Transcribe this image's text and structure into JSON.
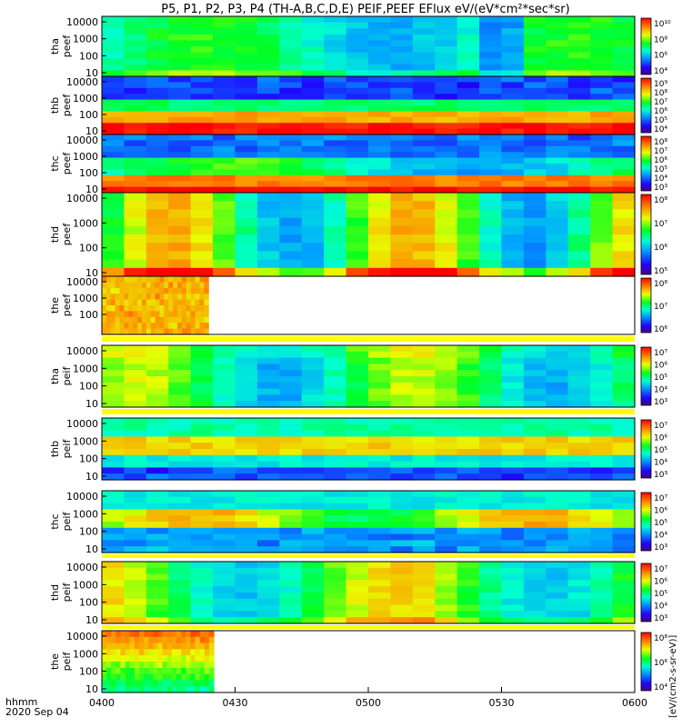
{
  "chart_data": {
    "type": "heatmap",
    "title": "P5, P1, P2, P3, P4 (TH-A,B,C,D,E) PEIF,PEEF EFlux eV/(eV*cm²*sec*sr)",
    "time_axis": {
      "tick_labels": [
        "0400",
        "0430",
        "0500",
        "0530",
        "0600"
      ],
      "label_line1": "hhmm",
      "label_line2": "2020 Sep 04"
    },
    "colorbar_units_label": "[eV/(cm2-s-sr-eV)]",
    "y_ticks_full": [
      "10000",
      "1000",
      "100",
      "10"
    ],
    "y_ticks_tha_peef": [
      "10000",
      "1000",
      "100",
      "10"
    ],
    "y_ticks_the_peef": [
      "10000",
      "1000",
      "100"
    ],
    "panels": [
      {
        "id": "tha-peef",
        "probe": "tha",
        "species": "peef",
        "label_line1": "tha",
        "label_line2": "peef",
        "colorbar_ticks": [
          "10¹⁰",
          "10⁸",
          "10⁶",
          "10⁴"
        ],
        "data_coverage_end": "0600"
      },
      {
        "id": "thb-peef",
        "probe": "thb",
        "species": "peef",
        "label_line1": "thb",
        "label_line2": "peef",
        "colorbar_ticks": [
          "10⁹",
          "10⁸",
          "10⁷",
          "10⁶",
          "10⁵",
          "10⁴"
        ],
        "data_coverage_end": "0600"
      },
      {
        "id": "thc-peef",
        "probe": "thc",
        "species": "peef",
        "label_line1": "thc",
        "label_line2": "peef",
        "colorbar_ticks": [
          "10⁸",
          "10⁷",
          "10⁶",
          "10⁵",
          "10⁴",
          "10³"
        ],
        "data_coverage_end": "0600"
      },
      {
        "id": "thd-peef",
        "probe": "thd",
        "species": "peef",
        "label_line1": "thd",
        "label_line2": "peef",
        "colorbar_ticks": [
          "10⁸",
          "10⁷",
          "10⁶",
          "10⁵"
        ],
        "data_coverage_end": "0600"
      },
      {
        "id": "the-peef",
        "probe": "the",
        "species": "peef",
        "label_line1": "the",
        "label_line2": "peef",
        "colorbar_ticks": [
          "10⁸",
          "10⁷",
          "10⁶"
        ],
        "data_coverage_end": "0428"
      },
      {
        "id": "tha-peif",
        "probe": "tha",
        "species": "peif",
        "label_line1": "tha",
        "label_line2": "peif",
        "colorbar_ticks": [
          "10⁷",
          "10⁶",
          "10⁵",
          "10⁴",
          "10³"
        ],
        "data_coverage_end": "0600"
      },
      {
        "id": "thb-peif",
        "probe": "thb",
        "species": "peif",
        "label_line1": "thb",
        "label_line2": "peif",
        "colorbar_ticks": [
          "10⁷",
          "10⁶",
          "10⁵",
          "10⁴",
          "10³"
        ],
        "data_coverage_end": "0600"
      },
      {
        "id": "thc-peif",
        "probe": "thc",
        "species": "peif",
        "label_line1": "thc",
        "label_line2": "peif",
        "colorbar_ticks": [
          "10⁷",
          "10⁶",
          "10⁵",
          "10⁴",
          "10³"
        ],
        "data_coverage_end": "0600"
      },
      {
        "id": "thd-peif",
        "probe": "thd",
        "species": "peif",
        "label_line1": "thd",
        "label_line2": "peif",
        "colorbar_ticks": [
          "10⁷",
          "10⁶",
          "10⁵",
          "10⁴",
          "10³"
        ],
        "data_coverage_end": "0600"
      },
      {
        "id": "the-peif",
        "probe": "the",
        "species": "peif",
        "label_line1": "the",
        "label_line2": "peif",
        "colorbar_ticks": [
          "10⁸",
          "10⁶",
          "10⁴"
        ],
        "data_coverage_end": "0430"
      }
    ],
    "colormap": "rainbow (violet-blue-cyan-green-yellow-red)"
  }
}
